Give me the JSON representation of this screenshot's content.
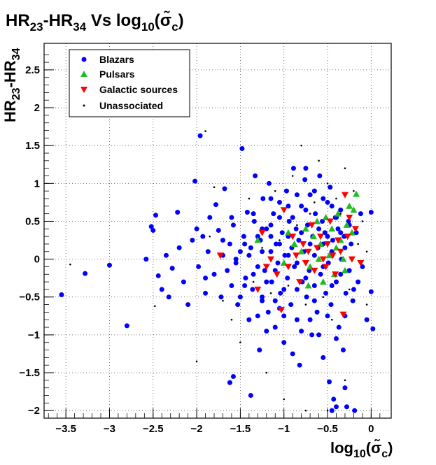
{
  "chart_data": {
    "type": "scatter",
    "title": {
      "base1": "HR",
      "sub1": "23",
      "mid": "-HR",
      "sub2": "34",
      "vs": " Vs log",
      "sub3": "10",
      "open": "(",
      "sigma": "σ̃",
      "sub4": "c",
      "close": ")"
    },
    "xlabel": {
      "base": "log",
      "sub": "10",
      "open": "(",
      "sigma": "σ̃",
      "sub2": "c",
      "close": ")"
    },
    "ylabel": {
      "base1": "HR",
      "sub1": "23",
      "mid": "-HR",
      "sub2": "34"
    },
    "xlim": [
      -3.75,
      0.23
    ],
    "ylim": [
      -2.1,
      2.85
    ],
    "xticks": [
      -3.5,
      -3,
      -2.5,
      -2,
      -1.5,
      -1,
      -0.5,
      0
    ],
    "xtick_labels": [
      "−3.5",
      "−3",
      "−2.5",
      "−2",
      "−1.5",
      "−1",
      "−0.5",
      "0"
    ],
    "yticks": [
      -2,
      -1.5,
      -1,
      -0.5,
      0,
      0.5,
      1,
      1.5,
      2,
      2.5
    ],
    "ytick_labels": [
      "−2",
      "−1.5",
      "−1",
      "−0.5",
      "0",
      "0.5",
      "1",
      "1.5",
      "2",
      "2.5"
    ],
    "grid": true,
    "legend_position": "top-left",
    "series": [
      {
        "name": "Blazars",
        "marker": "circle",
        "color": "#0000ff",
        "points": [
          [
            -3.55,
            -0.47
          ],
          [
            -3.28,
            -0.19
          ],
          [
            -3.0,
            -0.08
          ],
          [
            -2.8,
            -0.88
          ],
          [
            -2.58,
            0.0
          ],
          [
            -2.52,
            0.43
          ],
          [
            -2.5,
            0.38
          ],
          [
            -2.47,
            0.58
          ],
          [
            -2.44,
            -0.22
          ],
          [
            -2.4,
            -0.4
          ],
          [
            -2.35,
            0.05
          ],
          [
            -2.32,
            -0.5
          ],
          [
            -2.28,
            -0.12
          ],
          [
            -2.22,
            0.62
          ],
          [
            -2.2,
            0.15
          ],
          [
            -2.15,
            -0.3
          ],
          [
            -2.1,
            -0.6
          ],
          [
            -2.05,
            0.25
          ],
          [
            -2.02,
            1.03
          ],
          [
            -1.98,
            -0.1
          ],
          [
            -1.96,
            1.63
          ],
          [
            -1.93,
            0.3
          ],
          [
            -1.9,
            -0.45
          ],
          [
            -1.87,
            0.1
          ],
          [
            -1.85,
            0.55
          ],
          [
            -1.8,
            -0.2
          ],
          [
            -1.78,
            0.72
          ],
          [
            -1.75,
            0.38
          ],
          [
            -1.72,
            -0.5
          ],
          [
            -1.7,
            0.05
          ],
          [
            -1.68,
            0.93
          ],
          [
            -1.65,
            -0.15
          ],
          [
            -1.62,
            0.2
          ],
          [
            -1.6,
            -0.35
          ],
          [
            -1.58,
            0.45
          ],
          [
            -1.55,
            -0.05
          ],
          [
            -1.53,
            -0.6
          ],
          [
            -1.5,
            0.1
          ],
          [
            -1.48,
            1.46
          ],
          [
            -1.46,
            0.3
          ],
          [
            -1.44,
            -0.25
          ],
          [
            -1.42,
            0.62
          ],
          [
            -1.4,
            -0.8
          ],
          [
            -1.38,
            0.15
          ],
          [
            -1.36,
            -0.4
          ],
          [
            -1.34,
            0.5
          ],
          [
            -1.33,
            1.1
          ],
          [
            -1.3,
            -0.1
          ],
          [
            -1.28,
            -1.2
          ],
          [
            -1.27,
            0.25
          ],
          [
            -1.25,
            -0.5
          ],
          [
            -1.24,
            0.8
          ],
          [
            -1.22,
            -0.15
          ],
          [
            -1.2,
            0.4
          ],
          [
            -1.18,
            -0.7
          ],
          [
            -1.17,
            1.0
          ],
          [
            -1.15,
            0.1
          ],
          [
            -1.14,
            -0.3
          ],
          [
            -1.12,
            0.6
          ],
          [
            -1.1,
            -0.9
          ],
          [
            -1.09,
            0.2
          ],
          [
            -1.07,
            -0.05
          ],
          [
            -1.05,
            0.75
          ],
          [
            -1.04,
            -0.45
          ],
          [
            -1.02,
            0.35
          ],
          [
            -1.0,
            -1.1
          ],
          [
            -0.99,
            0.05
          ],
          [
            -0.97,
            0.9
          ],
          [
            -0.96,
            -0.25
          ],
          [
            -0.94,
            0.5
          ],
          [
            -0.92,
            -0.6
          ],
          [
            -0.91,
            0.15
          ],
          [
            -0.89,
            1.2
          ],
          [
            -0.88,
            -0.1
          ],
          [
            -0.86,
            0.4
          ],
          [
            -0.85,
            -0.8
          ],
          [
            -0.83,
            0.25
          ],
          [
            -0.82,
            -1.4
          ],
          [
            -0.8,
            0.7
          ],
          [
            -0.79,
            -0.3
          ],
          [
            -0.77,
            0.1
          ],
          [
            -0.76,
            1.05
          ],
          [
            -0.74,
            -0.5
          ],
          [
            -0.73,
            0.45
          ],
          [
            -0.71,
            -0.15
          ],
          [
            -0.7,
            0.85
          ],
          [
            -0.68,
            -1.0
          ],
          [
            -0.67,
            0.3
          ],
          [
            -0.65,
            -0.35
          ],
          [
            -0.64,
            0.6
          ],
          [
            -0.62,
            -0.7
          ],
          [
            -0.61,
            0.15
          ],
          [
            -0.59,
            1.1
          ],
          [
            -0.58,
            -0.2
          ],
          [
            -0.56,
            0.5
          ],
          [
            -0.55,
            -1.3
          ],
          [
            -0.53,
            0.35
          ],
          [
            -0.52,
            -0.45
          ],
          [
            -0.5,
            0.75
          ],
          [
            -0.49,
            -0.05
          ],
          [
            -0.47,
            0.95
          ],
          [
            -0.46,
            -0.6
          ],
          [
            -0.44,
            0.25
          ],
          [
            -0.43,
            -1.85
          ],
          [
            -0.41,
            0.55
          ],
          [
            -0.4,
            -0.3
          ],
          [
            -0.38,
            0.4
          ],
          [
            -0.37,
            -0.9
          ],
          [
            -0.35,
            0.65
          ],
          [
            -0.34,
            0.0
          ],
          [
            -0.32,
            -1.2
          ],
          [
            -0.31,
            0.3
          ],
          [
            -0.29,
            -0.45
          ],
          [
            -0.28,
            -1.95
          ],
          [
            -0.26,
            0.5
          ],
          [
            -0.25,
            -0.15
          ],
          [
            -0.23,
            0.2
          ],
          [
            -0.21,
            -0.55
          ],
          [
            -0.19,
            -2.0
          ],
          [
            -0.17,
            0.35
          ],
          [
            -0.15,
            -0.3
          ],
          [
            -0.12,
            0.6
          ],
          [
            -0.1,
            -0.1
          ],
          [
            -0.05,
            -0.8
          ],
          [
            0.0,
            0.62
          ],
          [
            0.02,
            -0.92
          ],
          [
            0.0,
            -0.43
          ],
          [
            -1.62,
            -1.63
          ],
          [
            -1.58,
            -1.55
          ],
          [
            -1.38,
            -1.8
          ],
          [
            -0.48,
            -1.62
          ],
          [
            -0.45,
            -2.0
          ],
          [
            -0.4,
            -1.95
          ],
          [
            -0.3,
            -1.7
          ],
          [
            -1.4,
            0.05
          ],
          [
            -1.35,
            -0.2
          ],
          [
            -1.3,
            0.3
          ],
          [
            -1.25,
            0.1
          ],
          [
            -1.2,
            -0.3
          ],
          [
            -1.15,
            0.45
          ],
          [
            -1.1,
            -0.15
          ],
          [
            -1.05,
            0.2
          ],
          [
            -1.0,
            -0.4
          ],
          [
            -0.95,
            0.05
          ],
          [
            -0.9,
            0.55
          ],
          [
            -0.85,
            -0.05
          ],
          [
            -0.8,
            0.35
          ],
          [
            -0.75,
            -0.25
          ],
          [
            -0.7,
            0.2
          ],
          [
            -0.65,
            0.05
          ],
          [
            -0.6,
            0.4
          ],
          [
            -0.55,
            -0.1
          ],
          [
            -0.5,
            0.3
          ],
          [
            -0.45,
            0.1
          ],
          [
            -0.4,
            0.55
          ],
          [
            -0.35,
            -0.2
          ],
          [
            -0.3,
            0.15
          ],
          [
            -0.25,
            0.45
          ],
          [
            -1.55,
            0.0
          ],
          [
            -1.45,
            -0.35
          ],
          [
            -1.35,
            0.6
          ],
          [
            -1.25,
            -0.55
          ],
          [
            -1.15,
            0.8
          ],
          [
            -1.05,
            -0.65
          ],
          [
            -0.95,
            0.3
          ],
          [
            -0.85,
            -0.4
          ],
          [
            -0.75,
            0.65
          ],
          [
            -0.65,
            -0.55
          ],
          [
            -0.55,
            0.2
          ],
          [
            -0.45,
            -0.35
          ],
          [
            -0.35,
            0.35
          ],
          [
            -1.7,
            0.25
          ],
          [
            -1.6,
            0.55
          ],
          [
            -1.5,
            -0.5
          ],
          [
            -1.45,
            0.2
          ],
          [
            -1.9,
            -0.25
          ],
          [
            -2.0,
            0.4
          ],
          [
            -0.6,
            -1.0
          ],
          [
            -0.7,
            -0.8
          ],
          [
            -0.8,
            -0.95
          ],
          [
            -0.9,
            -1.25
          ],
          [
            -1.0,
            -0.75
          ],
          [
            -1.1,
            -0.55
          ],
          [
            -1.2,
            -0.95
          ],
          [
            -1.3,
            -0.75
          ],
          [
            -0.5,
            -0.75
          ],
          [
            -0.4,
            -1.05
          ],
          [
            -0.3,
            -0.75
          ],
          [
            -0.2,
            -0.4
          ],
          [
            -0.65,
            0.9
          ],
          [
            -0.55,
            0.8
          ],
          [
            -0.45,
            0.7
          ],
          [
            -0.75,
            1.2
          ],
          [
            -0.85,
            0.85
          ],
          [
            -0.95,
            0.7
          ],
          [
            -1.05,
            0.55
          ],
          [
            -1.15,
            0.3
          ],
          [
            -1.25,
            0.4
          ]
        ]
      },
      {
        "name": "Pulsars",
        "marker": "triangle-up",
        "color": "#22bb22",
        "points": [
          [
            -1.3,
            0.25
          ],
          [
            -0.95,
            0.35
          ],
          [
            -0.88,
            0.2
          ],
          [
            -0.8,
            0.1
          ],
          [
            -0.75,
            0.4
          ],
          [
            -0.7,
            -0.1
          ],
          [
            -0.66,
            0.3
          ],
          [
            -0.62,
            0.5
          ],
          [
            -0.58,
            0.2
          ],
          [
            -0.55,
            -0.3
          ],
          [
            -0.52,
            0.55
          ],
          [
            -0.48,
            0.05
          ],
          [
            -0.45,
            0.4
          ],
          [
            -0.42,
            -0.2
          ],
          [
            -0.38,
            0.6
          ],
          [
            -0.35,
            0.25
          ],
          [
            -0.32,
            0.0
          ],
          [
            -0.28,
            0.45
          ],
          [
            -0.25,
            0.7
          ],
          [
            -0.22,
            0.35
          ],
          [
            -0.2,
            0.65
          ],
          [
            -0.17,
            0.86
          ],
          [
            -0.3,
            -0.15
          ],
          [
            -0.4,
            0.15
          ],
          [
            -0.6,
            0.0
          ],
          [
            -0.72,
            -0.35
          ],
          [
            -1.0,
            -0.05
          ]
        ]
      },
      {
        "name": "Galactic sources",
        "marker": "triangle-down",
        "color": "#ff0000",
        "points": [
          [
            -1.73,
            0.05
          ],
          [
            -1.3,
            -0.4
          ],
          [
            -1.25,
            0.35
          ],
          [
            -1.2,
            -0.1
          ],
          [
            -1.15,
            0.0
          ],
          [
            -1.08,
            -0.2
          ],
          [
            -1.03,
            -0.67
          ],
          [
            -1.0,
            0.65
          ],
          [
            -0.95,
            -0.1
          ],
          [
            -0.9,
            0.3
          ],
          [
            -0.86,
            0.05
          ],
          [
            -0.82,
            -0.3
          ],
          [
            -0.78,
            0.2
          ],
          [
            -0.75,
            -0.05
          ],
          [
            -0.72,
            0.1
          ],
          [
            -0.68,
            0.45
          ],
          [
            -0.65,
            -0.15
          ],
          [
            -0.62,
            0.15
          ],
          [
            -0.58,
            0.3
          ],
          [
            -0.55,
            0.0
          ],
          [
            -0.52,
            -0.1
          ],
          [
            -0.5,
            0.2
          ],
          [
            -0.47,
            0.5
          ],
          [
            -0.44,
            0.05
          ],
          [
            -0.41,
            -0.2
          ],
          [
            -0.38,
            0.25
          ],
          [
            -0.35,
            0.1
          ],
          [
            -0.32,
            -0.73
          ],
          [
            -0.3,
            0.85
          ],
          [
            -0.27,
            0.3
          ],
          [
            -0.25,
            0.55
          ],
          [
            -0.22,
            0.0
          ],
          [
            -0.18,
            0.4
          ],
          [
            -0.12,
            -0.05
          ]
        ]
      },
      {
        "name": "Unassociated",
        "marker": "dot",
        "color": "#000000",
        "points": [
          [
            -3.45,
            -0.07
          ],
          [
            -2.48,
            -0.62
          ],
          [
            -1.9,
            1.69
          ],
          [
            -1.8,
            0.95
          ],
          [
            -2.0,
            -1.35
          ],
          [
            -1.0,
            -1.85
          ],
          [
            -0.75,
            -2.0
          ],
          [
            -0.5,
            -2.0
          ],
          [
            -0.8,
            1.5
          ],
          [
            -0.3,
            -1.6
          ],
          [
            -0.05,
            -0.6
          ],
          [
            -1.5,
            -1.1
          ],
          [
            -1.2,
            -1.5
          ],
          [
            -0.6,
            1.3
          ],
          [
            -0.9,
            1.1
          ],
          [
            -1.1,
            0.9
          ],
          [
            -1.4,
            0.8
          ],
          [
            -1.6,
            -0.8
          ],
          [
            -0.3,
            1.2
          ],
          [
            -0.2,
            0.9
          ],
          [
            -0.15,
            0.2
          ],
          [
            -0.4,
            0.8
          ],
          [
            -0.5,
            1.0
          ],
          [
            -0.7,
            0.6
          ],
          [
            -0.85,
            0.45
          ],
          [
            -0.95,
            -0.35
          ],
          [
            -1.05,
            0.25
          ],
          [
            -1.15,
            -0.45
          ],
          [
            -1.25,
            0.15
          ],
          [
            -1.35,
            -0.3
          ],
          [
            -0.55,
            -0.5
          ],
          [
            -0.45,
            -0.8
          ],
          [
            -0.35,
            0.6
          ],
          [
            -0.25,
            -0.4
          ],
          [
            -0.65,
            0.75
          ],
          [
            -0.75,
            -0.6
          ],
          [
            -1.7,
            -0.55
          ],
          [
            -1.85,
            0.3
          ],
          [
            -0.1,
            0.5
          ],
          [
            -0.05,
            0.1
          ]
        ]
      }
    ]
  }
}
